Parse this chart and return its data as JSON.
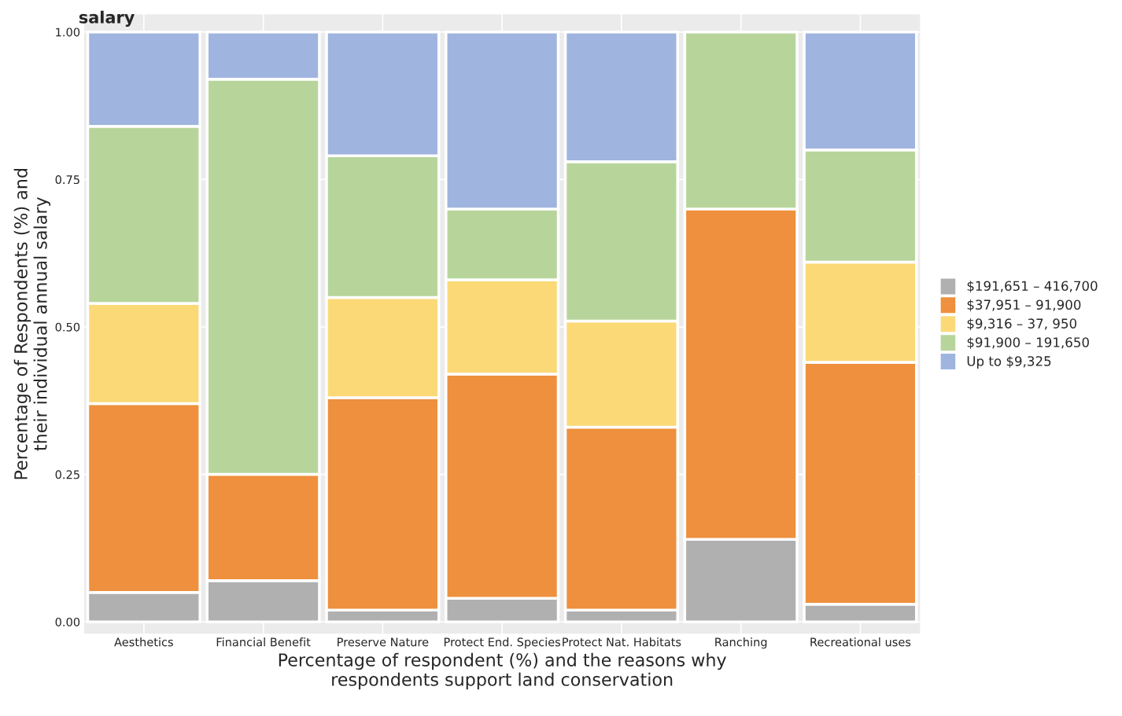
{
  "chart_data": {
    "type": "bar",
    "title": "salary",
    "xlabel": "Percentage of respondent (%) and the reasons why\nrespondents support land conservation",
    "ylabel": "Percentage of Respondents (%) and\ntheir individual annual salary",
    "categories": [
      "Aesthetics",
      "Financial Benefit",
      "Preserve Nature",
      "Protect End. Species",
      "Protect Nat. Habitats",
      "Ranching",
      "Recreational uses"
    ],
    "stacked": true,
    "series": [
      {
        "name": "$191,651 – 416,700",
        "color": "#b0b0b0",
        "values": [
          0.05,
          0.07,
          0.02,
          0.04,
          0.02,
          0.14,
          0.03
        ]
      },
      {
        "name": "$37,951 – 91,900",
        "color": "#ee903d",
        "values": [
          0.32,
          0.18,
          0.36,
          0.38,
          0.31,
          0.56,
          0.41
        ]
      },
      {
        "name": "$9,316 – 37, 950",
        "color": "#fbd977",
        "values": [
          0.17,
          null,
          0.17,
          0.16,
          0.18,
          null,
          0.17
        ]
      },
      {
        "name": "$91,900 – 191,650",
        "color": "#b7d59b",
        "values": [
          0.3,
          0.67,
          0.24,
          0.12,
          0.27,
          0.3,
          0.19
        ]
      },
      {
        "name": "Up to $9,325",
        "color": "#9fb5df",
        "values": [
          0.16,
          0.08,
          0.21,
          0.3,
          0.22,
          null,
          0.2
        ]
      }
    ],
    "ylim": [
      -0.02,
      1.03
    ],
    "yticks": [
      {
        "value": 0,
        "label": "0.00"
      },
      {
        "value": 0.25,
        "label": "0.25"
      },
      {
        "value": 0.5,
        "label": "0.50"
      },
      {
        "value": 0.75,
        "label": "0.75"
      },
      {
        "value": 1,
        "label": "1.00"
      }
    ],
    "grid": true,
    "legend": "right"
  }
}
